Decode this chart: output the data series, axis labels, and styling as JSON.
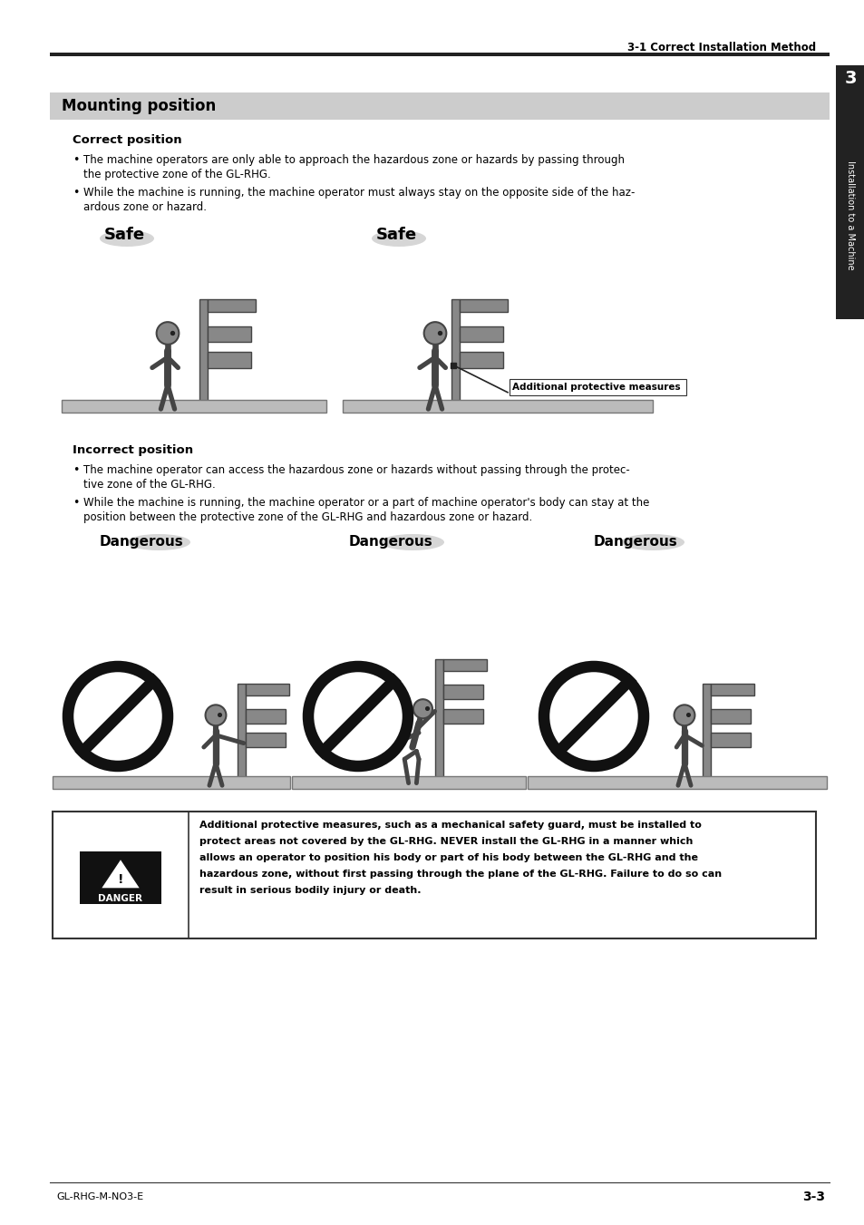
{
  "page_header": "3-1 Correct Installation Method",
  "section_title": "Mounting position",
  "section_title_bg": "#cccccc",
  "correct_heading": "Correct position",
  "correct_bullet1_line1": "The machine operators are only able to approach the hazardous zone or hazards by passing through",
  "correct_bullet1_line2": "the protective zone of the GL-RHG.",
  "correct_bullet2_line1": "While the machine is running, the machine operator must always stay on the opposite side of the haz-",
  "correct_bullet2_line2": "ardous zone or hazard.",
  "incorrect_heading": "Incorrect position",
  "incorrect_bullet1_line1": "The machine operator can access the hazardous zone or hazards without passing through the protec-",
  "incorrect_bullet1_line2": "tive zone of the GL-RHG.",
  "incorrect_bullet2_line1": "While the machine is running, the machine operator or a part of machine operator's body can stay at the",
  "incorrect_bullet2_line2": "position between the protective zone of the GL-RHG and hazardous zone or hazard.",
  "safe_label": "Safe",
  "dangerous_label": "Dangerous",
  "danger_box_line1": "Additional protective measures, such as a mechanical safety guard, must be installed to",
  "danger_box_line2": "protect areas not covered by the GL-RHG. NEVER install the GL-RHG in a manner which",
  "danger_box_line3": "allows an operator to position his body or part of his body between the GL-RHG and the",
  "danger_box_line4": "hazardous zone, without first passing through the plane of the GL-RHG. Failure to do so can",
  "danger_box_line5": "result in serious bodily injury or death.",
  "danger_label": "DANGER",
  "add_prot_label": "Additional protective measures",
  "footer_left": "GL-RHG-M-NO3-E",
  "footer_right": "3-3",
  "sidebar_text": "Installation to a Machine",
  "chapter_num": "3",
  "bg_color": "#ffffff",
  "text_color": "#000000",
  "gray_fig": "#888888",
  "dark_fig": "#444444",
  "light_gray": "#cccccc",
  "ground_color": "#bbbbbb"
}
